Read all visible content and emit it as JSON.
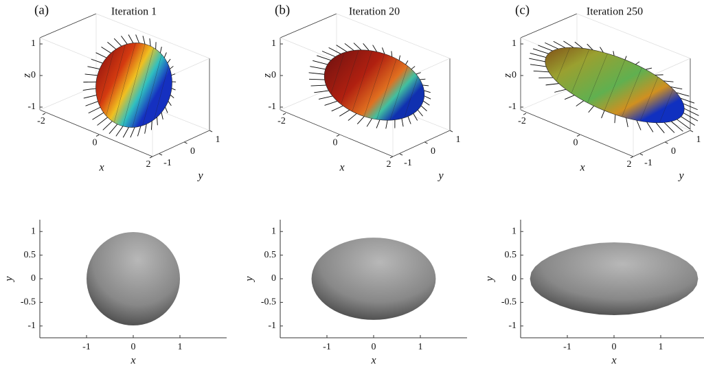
{
  "panels": [
    {
      "label": "(a)",
      "title": "Iteration 1",
      "top": {
        "xlabel": "x",
        "ylabel": "y",
        "zlabel": "z",
        "xticks": [
          -2,
          0,
          2
        ],
        "yticks": [
          -1,
          0,
          1
        ],
        "zticks": [
          -1,
          0,
          1
        ]
      },
      "bottom": {
        "xlabel": "x",
        "ylabel": "y",
        "xlim": [
          -2,
          2
        ],
        "ylim": [
          -1.25,
          1.25
        ],
        "xticks": [
          -1,
          0,
          1
        ],
        "yticks": [
          -1,
          -0.5,
          0,
          0.5,
          1
        ]
      }
    },
    {
      "label": "(b)",
      "title": "Iteration 20",
      "top": {
        "xlabel": "x",
        "ylabel": "y",
        "zlabel": "z",
        "xticks": [
          -2,
          0,
          2
        ],
        "yticks": [
          -1,
          0,
          1
        ],
        "zticks": [
          -1,
          0,
          1
        ]
      },
      "bottom": {
        "xlabel": "x",
        "ylabel": "y",
        "xlim": [
          -2,
          2
        ],
        "ylim": [
          -1.25,
          1.25
        ],
        "xticks": [
          -1,
          0,
          1
        ],
        "yticks": [
          -1,
          -0.5,
          0,
          0.5,
          1
        ]
      }
    },
    {
      "label": "(c)",
      "title": "Iteration 250",
      "top": {
        "xlabel": "x",
        "ylabel": "y",
        "zlabel": "z",
        "xticks": [
          -2,
          0,
          2
        ],
        "yticks": [
          -1,
          0,
          1
        ],
        "zticks": [
          -1,
          0,
          1
        ]
      },
      "bottom": {
        "xlabel": "x",
        "ylabel": "y",
        "xlim": [
          -2,
          2
        ],
        "ylim": [
          -1.25,
          1.25
        ],
        "xticks": [
          -1,
          0,
          1
        ],
        "yticks": [
          -1,
          -0.5,
          0,
          0.5,
          1
        ]
      }
    }
  ]
}
